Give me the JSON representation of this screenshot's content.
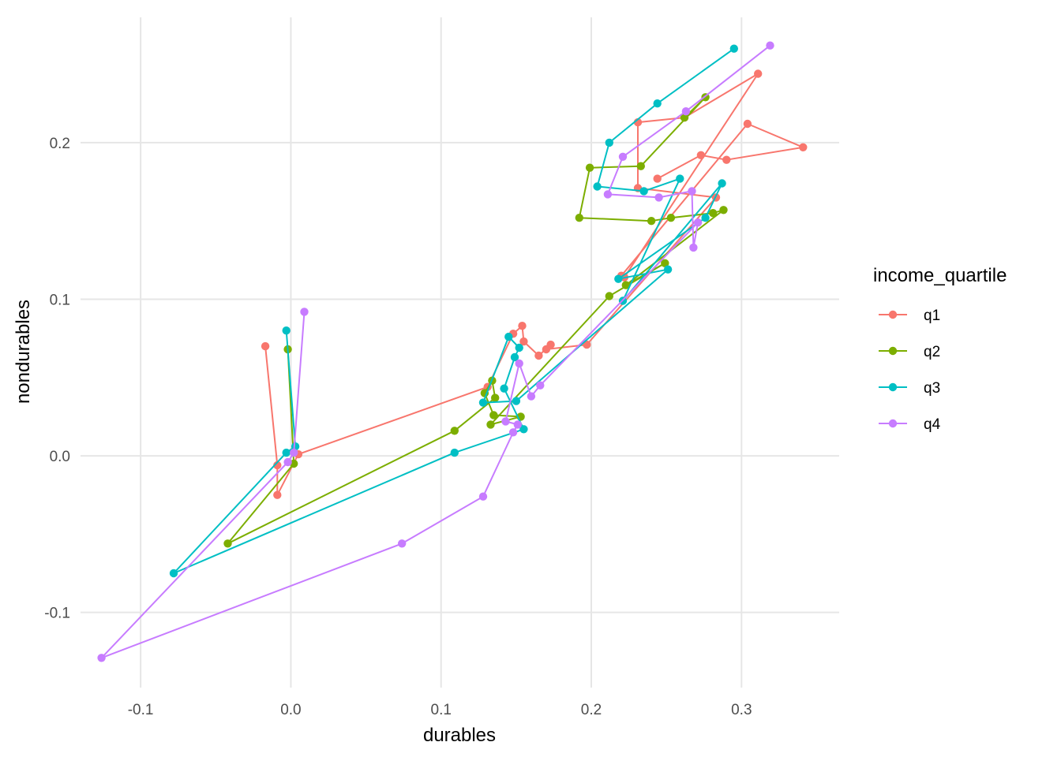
{
  "chart_data": {
    "type": "line",
    "xlabel": "durables",
    "ylabel": "nondurables",
    "xlim": [
      -0.14,
      0.365
    ],
    "ylim": [
      -0.148,
      0.28
    ],
    "x_ticks": [
      -0.1,
      0.0,
      0.1,
      0.2,
      0.3
    ],
    "x_tick_labels": [
      "-0.1",
      "0.0",
      "0.1",
      "0.2",
      "0.3"
    ],
    "y_ticks": [
      -0.1,
      0.0,
      0.1,
      0.2
    ],
    "y_tick_labels": [
      "-0.1",
      "0.0",
      "0.1",
      "0.2"
    ],
    "grid": true,
    "legend": {
      "title": "income_quartile",
      "position": "right"
    },
    "series": [
      {
        "name": "q1",
        "color": "#F8766D",
        "points": [
          [
            -0.017,
            0.07
          ],
          [
            -0.009,
            -0.006
          ],
          [
            -0.009,
            -0.025
          ],
          [
            0.005,
            0.001
          ],
          [
            0.131,
            0.044
          ],
          [
            0.148,
            0.078
          ],
          [
            0.154,
            0.083
          ],
          [
            0.155,
            0.073
          ],
          [
            0.165,
            0.064
          ],
          [
            0.173,
            0.071
          ],
          [
            0.17,
            0.068
          ],
          [
            0.197,
            0.071
          ],
          [
            0.283,
            0.165
          ],
          [
            0.231,
            0.171
          ],
          [
            0.231,
            0.213
          ],
          [
            0.262,
            0.216
          ],
          [
            0.311,
            0.244
          ],
          [
            0.222,
            0.114
          ],
          [
            0.22,
            0.115
          ],
          [
            0.304,
            0.212
          ],
          [
            0.341,
            0.197
          ],
          [
            0.29,
            0.189
          ],
          [
            0.273,
            0.192
          ],
          [
            0.244,
            0.177
          ]
        ]
      },
      {
        "name": "q2",
        "color": "#7CAE00",
        "points": [
          [
            -0.002,
            0.068
          ],
          [
            0.002,
            -0.005
          ],
          [
            -0.042,
            -0.056
          ],
          [
            0.109,
            0.016
          ],
          [
            0.136,
            0.037
          ],
          [
            0.134,
            0.048
          ],
          [
            0.129,
            0.04
          ],
          [
            0.135,
            0.026
          ],
          [
            0.153,
            0.025
          ],
          [
            0.133,
            0.02
          ],
          [
            0.212,
            0.102
          ],
          [
            0.249,
            0.123
          ],
          [
            0.223,
            0.109
          ],
          [
            0.288,
            0.157
          ],
          [
            0.281,
            0.155
          ],
          [
            0.253,
            0.152
          ],
          [
            0.24,
            0.15
          ],
          [
            0.192,
            0.152
          ],
          [
            0.199,
            0.184
          ],
          [
            0.233,
            0.185
          ],
          [
            0.276,
            0.229
          ],
          [
            0.262,
            0.216
          ]
        ]
      },
      {
        "name": "q3",
        "color": "#00BFC4",
        "points": [
          [
            -0.003,
            0.08
          ],
          [
            0.003,
            0.006
          ],
          [
            -0.003,
            0.002
          ],
          [
            -0.078,
            -0.075
          ],
          [
            0.109,
            0.002
          ],
          [
            0.155,
            0.017
          ],
          [
            0.142,
            0.043
          ],
          [
            0.149,
            0.063
          ],
          [
            0.152,
            0.069
          ],
          [
            0.145,
            0.076
          ],
          [
            0.128,
            0.034
          ],
          [
            0.15,
            0.035
          ],
          [
            0.251,
            0.119
          ],
          [
            0.218,
            0.113
          ],
          [
            0.276,
            0.152
          ],
          [
            0.287,
            0.174
          ],
          [
            0.221,
            0.099
          ],
          [
            0.259,
            0.177
          ],
          [
            0.235,
            0.169
          ],
          [
            0.204,
            0.172
          ],
          [
            0.212,
            0.2
          ],
          [
            0.244,
            0.225
          ],
          [
            0.295,
            0.26
          ]
        ]
      },
      {
        "name": "q4",
        "color": "#C77CFF",
        "points": [
          [
            0.009,
            0.092
          ],
          [
            0.002,
            0.002
          ],
          [
            -0.002,
            -0.004
          ],
          [
            -0.126,
            -0.129
          ],
          [
            0.074,
            -0.056
          ],
          [
            0.128,
            -0.026
          ],
          [
            0.148,
            0.015
          ],
          [
            0.151,
            0.02
          ],
          [
            0.143,
            0.022
          ],
          [
            0.152,
            0.059
          ],
          [
            0.16,
            0.038
          ],
          [
            0.166,
            0.045
          ],
          [
            0.271,
            0.149
          ],
          [
            0.268,
            0.133
          ],
          [
            0.267,
            0.169
          ],
          [
            0.245,
            0.165
          ],
          [
            0.211,
            0.167
          ],
          [
            0.221,
            0.191
          ],
          [
            0.263,
            0.22
          ],
          [
            0.319,
            0.262
          ]
        ]
      }
    ]
  }
}
